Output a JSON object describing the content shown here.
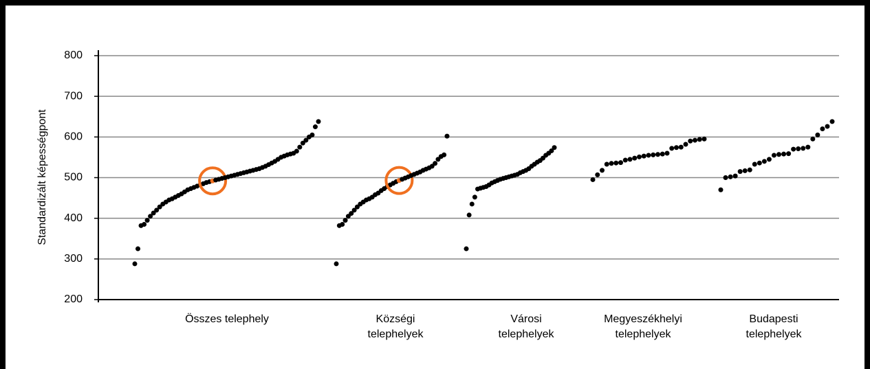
{
  "chart_data": {
    "type": "scatter",
    "ylabel": "Standardizált képességpont",
    "ylim": [
      200,
      800
    ],
    "yticks": [
      200,
      300,
      400,
      500,
      600,
      700,
      800
    ],
    "grid": true,
    "color": "#000000",
    "highlight_color": "#f07020",
    "categories": [
      [
        "Összes telephely"
      ],
      [
        "Községi",
        "telephelyek"
      ],
      [
        "Városi",
        "telephelyek"
      ],
      [
        "Megyeszékhelyi",
        "telephelyek"
      ],
      [
        "Budapesti",
        "telephelyek"
      ]
    ],
    "series": [
      {
        "values": [
          288,
          325,
          382,
          385,
          395,
          405,
          413,
          420,
          428,
          435,
          440,
          445,
          448,
          452,
          456,
          460,
          465,
          470,
          473,
          476,
          479,
          482,
          485,
          488,
          490,
          492,
          494,
          496,
          498,
          500,
          502,
          504,
          506,
          508,
          510,
          512,
          514,
          516,
          518,
          520,
          522,
          525,
          528,
          532,
          536,
          540,
          545,
          550,
          553,
          556,
          558,
          560,
          565,
          575,
          585,
          592,
          600,
          605,
          625,
          638
        ],
        "highlight_index": 25
      },
      {
        "values": [
          288,
          382,
          385,
          395,
          405,
          412,
          420,
          428,
          435,
          440,
          445,
          448,
          452,
          458,
          462,
          468,
          473,
          478,
          482,
          486,
          490,
          493,
          496,
          499,
          502,
          505,
          508,
          511,
          514,
          518,
          521,
          524,
          528,
          535,
          545,
          552,
          556,
          602
        ],
        "highlight_index": 21
      },
      {
        "values": [
          325,
          408,
          435,
          452,
          472,
          474,
          476,
          478,
          482,
          487,
          490,
          493,
          496,
          498,
          500,
          502,
          504,
          506,
          508,
          512,
          515,
          518,
          522,
          528,
          533,
          538,
          542,
          548,
          555,
          560,
          566,
          574
        ]
      },
      {
        "values": [
          495,
          507,
          518,
          533,
          535,
          536,
          537,
          543,
          545,
          548,
          551,
          553,
          555,
          556,
          557,
          558,
          560,
          572,
          574,
          575,
          582,
          590,
          592,
          594,
          595
        ]
      },
      {
        "values": [
          470,
          500,
          502,
          504,
          515,
          517,
          519,
          533,
          536,
          540,
          545,
          555,
          557,
          558,
          559,
          570,
          571,
          572,
          575,
          595,
          605,
          620,
          626,
          638
        ]
      }
    ]
  }
}
